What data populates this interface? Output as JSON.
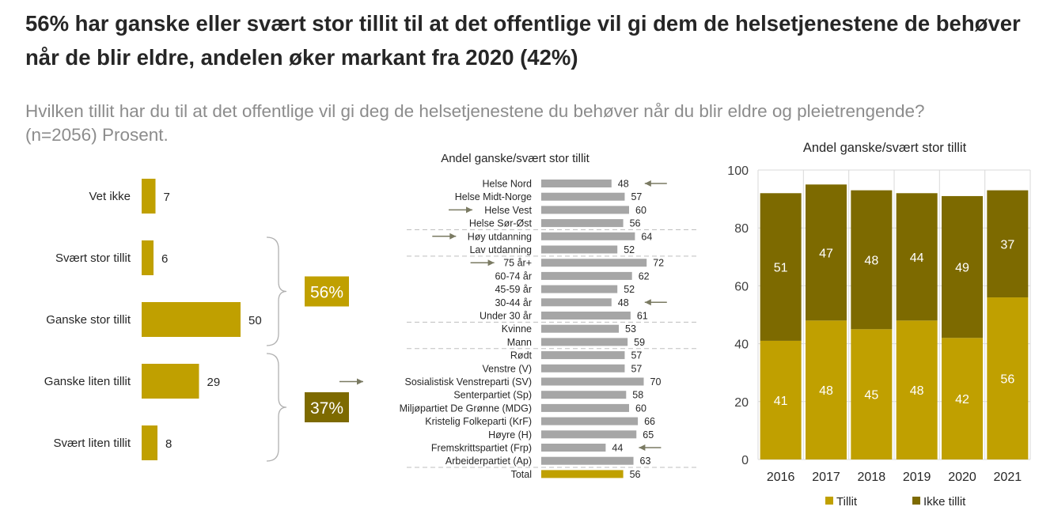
{
  "title": "56% har ganske eller svært stor tillit til at det offentlige vil gi dem de helsetjenestene de behøver når de blir eldre, andelen øker markant fra 2020 (42%)",
  "subtitle": "Hvilken tillit har du til at det offentlige vil gi deg de helsetjenestene du behøver når du blir eldre og pleietrengende? (n=2056) Prosent.",
  "colors": {
    "tillit": "#c0a000",
    "ikke_tillit": "#7d6a00",
    "gray_bar": "#a6a6a6",
    "arrow": "#7a7a62"
  },
  "chart_data": [
    {
      "type": "bar",
      "orientation": "horizontal",
      "categories": [
        "Vet ikke",
        "Svært stor tillit",
        "Ganske stor tillit",
        "Ganske liten tillit",
        "Svært liten tillit"
      ],
      "values": [
        7,
        6,
        50,
        29,
        8
      ],
      "brackets": [
        {
          "label": "56%",
          "covers": [
            "Svært stor tillit",
            "Ganske stor tillit"
          ]
        },
        {
          "label": "37%",
          "covers": [
            "Ganske liten tillit",
            "Svært liten tillit"
          ]
        }
      ]
    },
    {
      "type": "bar",
      "orientation": "horizontal",
      "title": "Andel ganske/svært stor tillit",
      "categories": [
        "Helse Nord",
        "Helse Midt-Norge",
        "Helse Vest",
        "Helse Sør-Øst",
        "Høy utdanning",
        "Lav utdanning",
        "75 år+",
        "60-74 år",
        "45-59 år",
        "30-44 år",
        "Under 30 år",
        "Kvinne",
        "Mann",
        "Rødt",
        "Venstre (V)",
        "Sosialistisk Venstreparti (SV)",
        "Senterpartiet (Sp)",
        "Miljøpartiet De Grønne (MDG)",
        "Kristelig Folkeparti (KrF)",
        "Høyre (H)",
        "Fremskrittspartiet (Frp)",
        "Arbeiderpartiet (Ap)",
        "Total"
      ],
      "values": [
        48,
        57,
        60,
        56,
        64,
        52,
        72,
        62,
        52,
        48,
        61,
        53,
        59,
        57,
        57,
        70,
        58,
        60,
        66,
        65,
        44,
        63,
        56
      ],
      "arrows_right": [
        "Helse Nord",
        "30-44 år",
        "Fremskrittspartiet (Frp)"
      ],
      "arrows_left": [
        "Helse Vest",
        "Høy utdanning",
        "75 år+",
        "Sosialistisk Venstreparti (SV)"
      ],
      "highlight": "Total",
      "group_separators_after": [
        "Helse Sør-Øst",
        "Lav utdanning",
        "Under 30 år",
        "Mann",
        "Arbeiderpartiet (Ap)"
      ]
    },
    {
      "type": "bar",
      "stacked": true,
      "title": "Andel ganske/svært stor tillit",
      "categories": [
        "2016",
        "2017",
        "2018",
        "2019",
        "2020",
        "2021"
      ],
      "series": [
        {
          "name": "Tillit",
          "values": [
            41,
            48,
            45,
            48,
            42,
            56
          ]
        },
        {
          "name": "Ikke tillit",
          "values": [
            51,
            47,
            48,
            44,
            49,
            37
          ]
        }
      ],
      "ylim": [
        0,
        100
      ],
      "yticks": [
        0,
        20,
        40,
        60,
        80,
        100
      ],
      "grid": true,
      "legend": "bottom"
    }
  ]
}
